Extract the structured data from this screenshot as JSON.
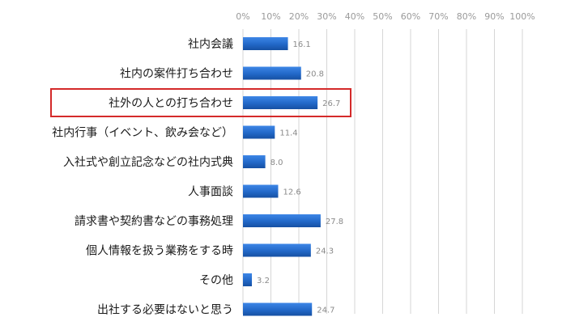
{
  "chart_data": {
    "type": "bar",
    "orientation": "horizontal",
    "categories": [
      "社内会議",
      "社内の案件打ち合わせ",
      "社外の人との打ち合わせ",
      "社内行事（イベント、飲み会など）",
      "入社式や創立記念などの社内式典",
      "人事面談",
      "請求書や契約書などの事務処理",
      "個人情報を扱う業務をする時",
      "その他",
      "出社する必要はないと思う"
    ],
    "values": [
      16.1,
      20.8,
      26.7,
      11.4,
      8.0,
      12.6,
      27.8,
      24.3,
      3.2,
      24.7
    ],
    "value_labels": [
      "16.1",
      "20.8",
      "26.7",
      "11.4",
      "8.0",
      "12.6",
      "27.8",
      "24.3",
      "3.2",
      "24.7"
    ],
    "x_ticks": [
      "0%",
      "10%",
      "20%",
      "30%",
      "40%",
      "50%",
      "60%",
      "70%",
      "80%",
      "90%",
      "100%"
    ],
    "xlim": [
      0,
      100
    ],
    "axis_position": "top",
    "grid": true,
    "legend": "none",
    "highlighted_category_index": 2,
    "colors": {
      "bar": "#2268c8",
      "highlight_box": "#d42a2a",
      "grid": "#d6d6d6",
      "tick_text": "#9a9a9a",
      "label_text": "#1a1a1a",
      "value_text": "#8a8a8a"
    }
  }
}
